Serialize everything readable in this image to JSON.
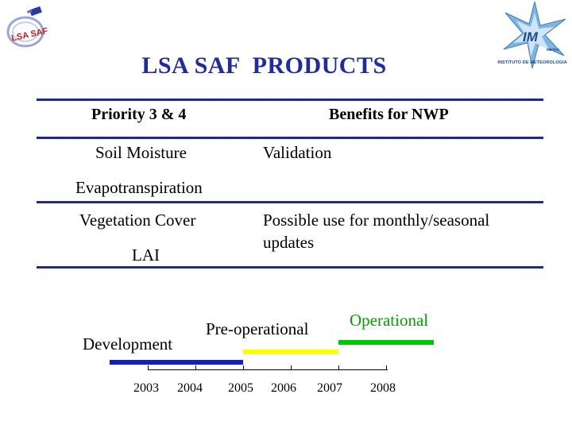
{
  "title": "LSA SAF  PRODUCTS",
  "logos": {
    "left_logo_text": "LSA SAF",
    "right_logo_text": "IM",
    "right_logo_caption": "INSTITUTO DE METEOROLOGIA",
    "right_logo_brand": "METEO"
  },
  "table": {
    "headers": {
      "left": "Priority 3 & 4",
      "right": "Benefits for NWP"
    },
    "rows": [
      {
        "left": "Soil Moisture",
        "right": "Validation"
      },
      {
        "left": "Evapotranspiration",
        "right": ""
      },
      {
        "left": "Vegetation Cover",
        "right": "Possible use for monthly/seasonal"
      },
      {
        "left": "LAI",
        "right": "updates"
      }
    ]
  },
  "timeline": {
    "phases": [
      {
        "label": "Development",
        "color": "#1020c8",
        "start": 2002.5,
        "end": 2005
      },
      {
        "label": "Pre-operational",
        "color": "#ffff00",
        "start": 2005,
        "end": 2007
      },
      {
        "label": "Operational",
        "color": "#00c800",
        "start": 2007,
        "end": 2009
      }
    ],
    "years": [
      "2003",
      "2004",
      "2005",
      "2006",
      "2007",
      "2008"
    ]
  },
  "colors": {
    "title": "#1f2ba0",
    "rule": "#1f2a8e",
    "operational_text": "#00a000"
  }
}
